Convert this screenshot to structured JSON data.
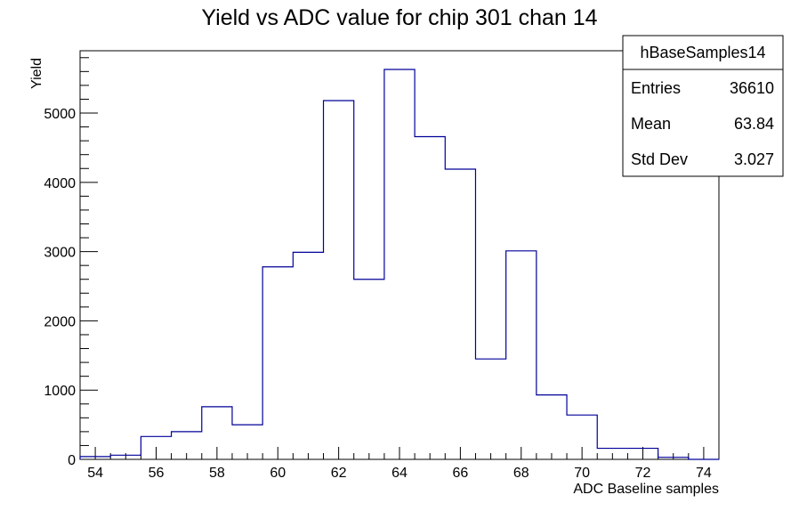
{
  "chart_data": {
    "type": "histogram",
    "title": "Yield vs ADC value for chip 301 chan 14",
    "xlabel": "ADC Baseline samples",
    "ylabel": "Yield",
    "xlim": [
      53.5,
      74.5
    ],
    "ylim": [
      0,
      5900
    ],
    "x_ticks": [
      54,
      56,
      58,
      60,
      62,
      64,
      66,
      68,
      70,
      72,
      74
    ],
    "y_ticks": [
      0,
      1000,
      2000,
      3000,
      4000,
      5000
    ],
    "bin_edges": [
      53.5,
      54.5,
      55.5,
      56.5,
      57.5,
      58.5,
      59.5,
      60.5,
      61.5,
      62.5,
      63.5,
      64.5,
      65.5,
      66.5,
      67.5,
      68.5,
      69.5,
      70.5,
      71.5,
      72.5,
      73.5,
      74.5
    ],
    "values": [
      40,
      60,
      330,
      400,
      760,
      500,
      2780,
      2990,
      5180,
      2600,
      5630,
      4660,
      4190,
      1450,
      3010,
      930,
      640,
      160,
      160,
      30,
      0
    ],
    "line_color": "#000099",
    "grid": false,
    "stats_box": {
      "name": "hBaseSamples14",
      "rows": [
        {
          "label": "Entries",
          "value": "36610"
        },
        {
          "label": "Mean",
          "value": "63.84"
        },
        {
          "label": "Std Dev",
          "value": "3.027"
        }
      ],
      "placement": "top-right"
    }
  }
}
